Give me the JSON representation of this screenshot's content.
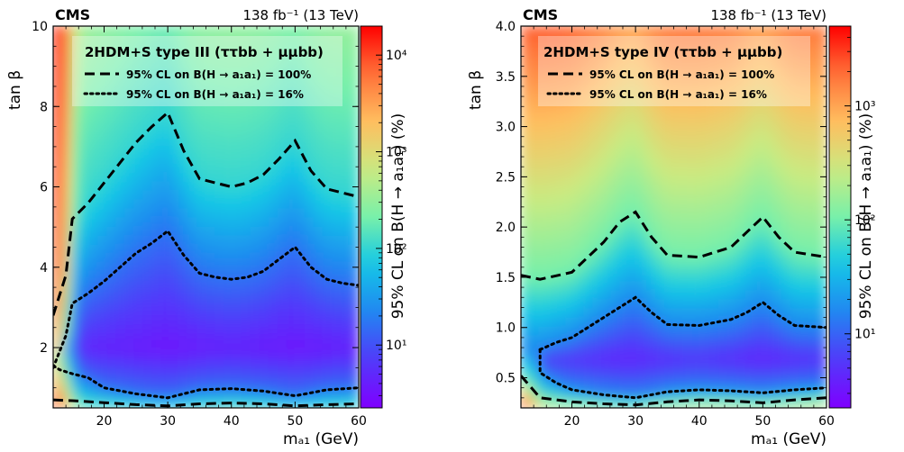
{
  "chart_data": [
    {
      "type": "heatmap",
      "experiment": "CMS",
      "lumi": "138 fb⁻¹ (13 TeV)",
      "legend_title": "2HDM+S type III (ττbb + μμbb)",
      "xlabel": "mₐ₁ (GeV)",
      "ylabel": "tan β",
      "zlabel": "95% CL on B(H → a₁a₁) (%)",
      "xlim": [
        12,
        60
      ],
      "ylim": [
        0.5,
        10
      ],
      "x_ticks": [
        20,
        30,
        40,
        50,
        60
      ],
      "y_ticks": [
        2,
        4,
        6,
        8,
        10
      ],
      "z_ticks": [
        "10¹",
        "10²",
        "10³",
        "10⁴"
      ],
      "zlim_log10": [
        0.35,
        4.3
      ],
      "series": [
        {
          "name": "95% CL on B(H → a₁a₁) = 100%",
          "style": "dashed",
          "upper": [
            [
              12,
              2.8
            ],
            [
              14,
              3.8
            ],
            [
              15,
              5.2
            ],
            [
              17.5,
              5.6
            ],
            [
              20,
              6.1
            ],
            [
              22.5,
              6.6
            ],
            [
              25,
              7.1
            ],
            [
              27.5,
              7.5
            ],
            [
              30,
              7.85
            ],
            [
              32.5,
              6.9
            ],
            [
              35,
              6.2
            ],
            [
              37.5,
              6.1
            ],
            [
              40,
              6.0
            ],
            [
              42.5,
              6.1
            ],
            [
              45,
              6.3
            ],
            [
              47.5,
              6.7
            ],
            [
              50,
              7.15
            ],
            [
              52.5,
              6.4
            ],
            [
              55,
              5.95
            ],
            [
              57.5,
              5.85
            ],
            [
              60,
              5.75
            ]
          ],
          "lower": [
            [
              12,
              0.7
            ],
            [
              15,
              0.68
            ],
            [
              20,
              0.63
            ],
            [
              25,
              0.58
            ],
            [
              30,
              0.55
            ],
            [
              35,
              0.6
            ],
            [
              40,
              0.62
            ],
            [
              45,
              0.6
            ],
            [
              50,
              0.55
            ],
            [
              55,
              0.58
            ],
            [
              60,
              0.6
            ]
          ]
        },
        {
          "name": "95% CL on B(H → a₁a₁) = 16%",
          "style": "dotted",
          "upper": [
            [
              12,
              1.5
            ],
            [
              14,
              2.3
            ],
            [
              15,
              3.1
            ],
            [
              17.5,
              3.35
            ],
            [
              20,
              3.65
            ],
            [
              22.5,
              4.0
            ],
            [
              25,
              4.35
            ],
            [
              27.5,
              4.6
            ],
            [
              30,
              4.9
            ],
            [
              32.5,
              4.3
            ],
            [
              35,
              3.85
            ],
            [
              37.5,
              3.75
            ],
            [
              40,
              3.7
            ],
            [
              42.5,
              3.75
            ],
            [
              45,
              3.9
            ],
            [
              47.5,
              4.2
            ],
            [
              50,
              4.5
            ],
            [
              52.5,
              4.0
            ],
            [
              55,
              3.7
            ],
            [
              57.5,
              3.6
            ],
            [
              60,
              3.55
            ]
          ],
          "lower": [
            [
              12,
              1.55
            ],
            [
              13,
              1.45
            ],
            [
              15,
              1.35
            ],
            [
              17.5,
              1.25
            ],
            [
              20,
              1.0
            ],
            [
              25,
              0.85
            ],
            [
              30,
              0.75
            ],
            [
              35,
              0.95
            ],
            [
              40,
              0.98
            ],
            [
              45,
              0.92
            ],
            [
              50,
              0.8
            ],
            [
              55,
              0.95
            ],
            [
              60,
              1.0
            ]
          ]
        }
      ]
    },
    {
      "type": "heatmap",
      "experiment": "CMS",
      "lumi": "138 fb⁻¹ (13 TeV)",
      "legend_title": "2HDM+S type IV (ττbb + μμbb)",
      "xlabel": "mₐ₁ (GeV)",
      "ylabel": "tan β",
      "zlabel": "95% CL on B(H → a₁a₁) (%)",
      "xlim": [
        12,
        60
      ],
      "ylim": [
        0.2,
        4.0
      ],
      "x_ticks": [
        20,
        30,
        40,
        50,
        60
      ],
      "y_ticks": [
        0.5,
        1.0,
        1.5,
        2.0,
        2.5,
        3.0,
        3.5,
        4.0
      ],
      "z_ticks": [
        "10¹",
        "10²",
        "10³"
      ],
      "zlim_log10": [
        0.35,
        3.7
      ],
      "series": [
        {
          "name": "95% CL on B(H → a₁a₁) = 100%",
          "style": "dashed",
          "upper": [
            [
              12,
              1.52
            ],
            [
              15,
              1.48
            ],
            [
              20,
              1.55
            ],
            [
              22.5,
              1.7
            ],
            [
              25,
              1.85
            ],
            [
              27.5,
              2.05
            ],
            [
              30,
              2.15
            ],
            [
              32.5,
              1.9
            ],
            [
              35,
              1.72
            ],
            [
              40,
              1.7
            ],
            [
              45,
              1.8
            ],
            [
              47.5,
              1.95
            ],
            [
              50,
              2.1
            ],
            [
              52.5,
              1.9
            ],
            [
              55,
              1.75
            ],
            [
              60,
              1.7
            ]
          ],
          "lower": [
            [
              12,
              0.52
            ],
            [
              15,
              0.3
            ],
            [
              20,
              0.26
            ],
            [
              25,
              0.24
            ],
            [
              30,
              0.23
            ],
            [
              35,
              0.26
            ],
            [
              40,
              0.28
            ],
            [
              45,
              0.27
            ],
            [
              50,
              0.25
            ],
            [
              55,
              0.28
            ],
            [
              60,
              0.3
            ]
          ]
        },
        {
          "name": "95% CL on B(H → a₁a₁) = 16%",
          "style": "dotted",
          "upper": [
            [
              15,
              0.78
            ],
            [
              17.5,
              0.85
            ],
            [
              20,
              0.9
            ],
            [
              22.5,
              1.0
            ],
            [
              25,
              1.1
            ],
            [
              27.5,
              1.2
            ],
            [
              30,
              1.3
            ],
            [
              32.5,
              1.15
            ],
            [
              35,
              1.03
            ],
            [
              40,
              1.02
            ],
            [
              45,
              1.08
            ],
            [
              47.5,
              1.15
            ],
            [
              50,
              1.25
            ],
            [
              52.5,
              1.12
            ],
            [
              55,
              1.02
            ],
            [
              60,
              1.0
            ]
          ],
          "lower": [
            [
              15,
              0.78
            ],
            [
              15,
              0.55
            ],
            [
              17.5,
              0.45
            ],
            [
              20,
              0.38
            ],
            [
              25,
              0.33
            ],
            [
              30,
              0.3
            ],
            [
              35,
              0.36
            ],
            [
              40,
              0.38
            ],
            [
              45,
              0.37
            ],
            [
              50,
              0.35
            ],
            [
              55,
              0.38
            ],
            [
              60,
              0.4
            ]
          ]
        }
      ]
    }
  ]
}
